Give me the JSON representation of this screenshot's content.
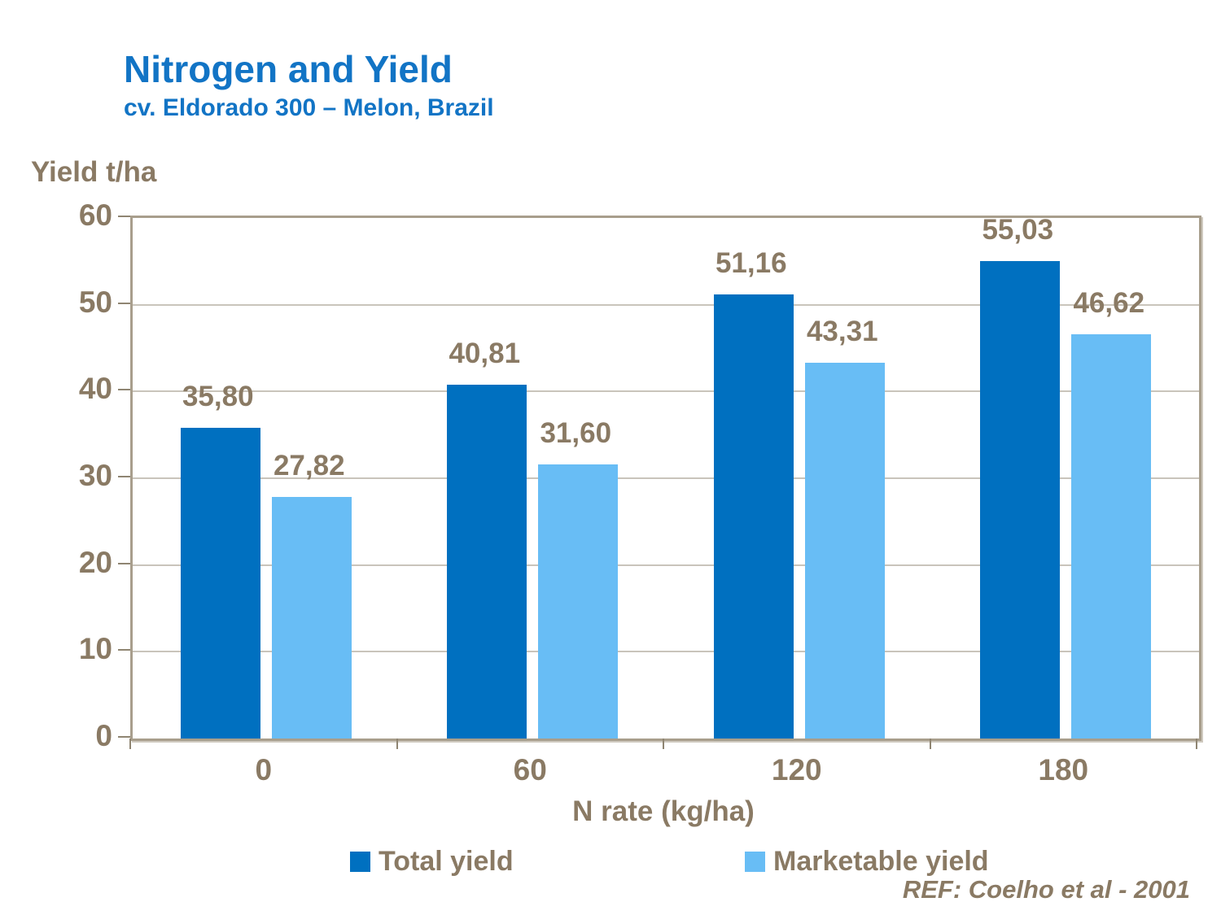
{
  "header": {
    "title": "Nitrogen and Yield",
    "subtitle": "cv. Eldorado 300 – Melon, Brazil"
  },
  "chart_data": {
    "type": "bar",
    "title": "Nitrogen and Yield",
    "subtitle": "cv. Eldorado 300 – Melon, Brazil",
    "y_axis_title": "Yield t/ha",
    "x_axis_title": "N rate (kg/ha)",
    "categories": [
      "0",
      "60",
      "120",
      "180"
    ],
    "series": [
      {
        "name": "Total yield",
        "color": "#0070C0",
        "values": [
          35.8,
          40.81,
          51.16,
          55.03
        ],
        "value_labels": [
          "35,80",
          "40,81",
          "51,16",
          "55,03"
        ]
      },
      {
        "name": "Marketable yield",
        "color": "#68BDF5",
        "values": [
          27.82,
          31.6,
          43.31,
          46.62
        ],
        "value_labels": [
          "27,82",
          "31,60",
          "43,31",
          "46,62"
        ]
      }
    ],
    "ylim": [
      0,
      60
    ],
    "y_tick_step": 10,
    "y_tick_labels": [
      "0",
      "10",
      "20",
      "30",
      "40",
      "50",
      "60"
    ],
    "grid": true,
    "legend_position": "bottom"
  },
  "footer": {
    "reference": "REF: Coelho et al - 2001"
  },
  "colors": {
    "title_blue": "#1274C5",
    "text_brown": "#8A7A64",
    "plot_border": "#A89E8C",
    "gridline": "#C9C4BB",
    "total_yield_bar": "#0070C0",
    "marketable_yield_bar": "#68BDF5"
  }
}
